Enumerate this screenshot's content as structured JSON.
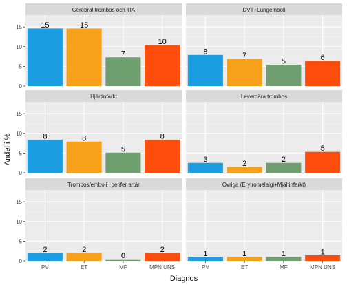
{
  "chart_data": {
    "type": "bar",
    "xlabel": "Diagnos",
    "ylabel": "Andel i %",
    "ylim": [
      0,
      18
    ],
    "yticks": [
      0,
      5,
      10,
      15
    ],
    "categories": [
      "PV",
      "ET",
      "MF",
      "MPN UNS"
    ],
    "colors": {
      "PV": "#1b9de2",
      "ET": "#f7a11a",
      "MF": "#6f9f6f",
      "MPN UNS": "#fd4d0c"
    },
    "grid": true,
    "legend": "none",
    "panels": [
      {
        "title": "Cerebral trombos och TIA",
        "values": [
          14.6,
          14.6,
          7.3,
          10.4
        ],
        "labels": [
          "15",
          "15",
          "7",
          "10"
        ]
      },
      {
        "title": "DVT+Lungemboli",
        "values": [
          7.9,
          6.9,
          5.4,
          6.4
        ],
        "labels": [
          "8",
          "7",
          "5",
          "6"
        ]
      },
      {
        "title": "Hjärtinfarkt",
        "values": [
          8.4,
          7.9,
          5.1,
          8.4
        ],
        "labels": [
          "8",
          "8",
          "5",
          "8"
        ]
      },
      {
        "title": "Levernära trombos",
        "values": [
          2.5,
          1.5,
          2.5,
          5.3
        ],
        "labels": [
          "3",
          "2",
          "2",
          "5"
        ]
      },
      {
        "title": "Trombos/emboli i perifer artär",
        "values": [
          2.0,
          2.0,
          0.4,
          2.0
        ],
        "labels": [
          "2",
          "2",
          "0",
          "2"
        ]
      },
      {
        "title": "Övriga (Erytromelalgi+Mjältinfarkt)",
        "values": [
          1.0,
          1.0,
          1.0,
          1.4
        ],
        "labels": [
          "1",
          "1",
          "1",
          "1"
        ]
      }
    ]
  }
}
